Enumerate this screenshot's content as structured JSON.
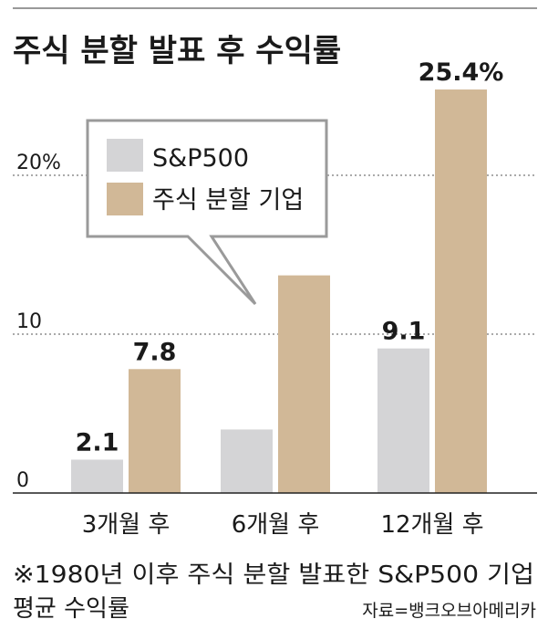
{
  "chart_data": {
    "type": "bar",
    "title": "주식 분할 발표 후 수익률",
    "categories": [
      "3개월 후",
      "6개월 후",
      "12개월 후"
    ],
    "series": [
      {
        "name": "S&P500",
        "values": [
          2.1,
          4.0,
          9.1
        ],
        "color": "#d4d4d6",
        "labels": [
          "2.1",
          "",
          "9.1"
        ]
      },
      {
        "name": "주식 분할 기업",
        "values": [
          7.8,
          13.7,
          25.4
        ],
        "color": "#d1b897",
        "labels": [
          "7.8",
          "",
          "25.4%"
        ]
      }
    ],
    "yticks": [
      {
        "value": 0,
        "label": "0"
      },
      {
        "value": 10,
        "label": "10"
      },
      {
        "value": 20,
        "label": "20%"
      }
    ],
    "ylim": [
      0,
      25.4
    ],
    "grid": true,
    "legend_position": "top-left",
    "xlabel": "",
    "ylabel": ""
  },
  "footnote": {
    "line1": "※1980년 이후 주식 분할 발표한 S&P500 기업",
    "line2": "평균 수익률"
  },
  "source": "자료=뱅크오브아메리카",
  "colors": {
    "text": "#1a1a1a",
    "grid": "#555555",
    "axis": "#222222"
  }
}
